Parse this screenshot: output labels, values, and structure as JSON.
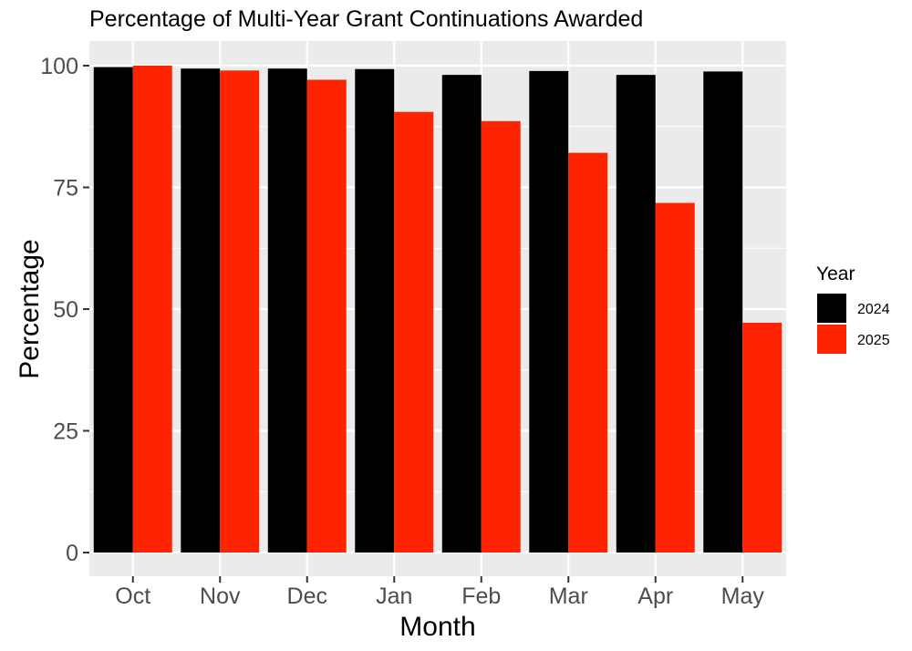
{
  "chart_data": {
    "type": "bar",
    "title": "Percentage of Multi-Year Grant Continuations Awarded",
    "xlabel": "Month",
    "ylabel": "Percentage",
    "categories": [
      "Oct",
      "Nov",
      "Dec",
      "Jan",
      "Feb",
      "Mar",
      "Apr",
      "May"
    ],
    "series": [
      {
        "name": "2024",
        "color": "#000000",
        "values": [
          99.7,
          99.4,
          99.4,
          99.3,
          98.1,
          98.9,
          98.1,
          98.8
        ]
      },
      {
        "name": "2025",
        "color": "#ff2400",
        "values": [
          100.0,
          99.0,
          97.1,
          90.5,
          88.6,
          82.1,
          71.8,
          47.2
        ]
      }
    ],
    "ylim": [
      0,
      100
    ],
    "yticks": [
      0,
      25,
      50,
      75,
      100
    ],
    "grid": true,
    "legend": {
      "title": "Year",
      "position": "right"
    },
    "panel_background": "#ebebeb",
    "grid_color": "#ffffff"
  }
}
